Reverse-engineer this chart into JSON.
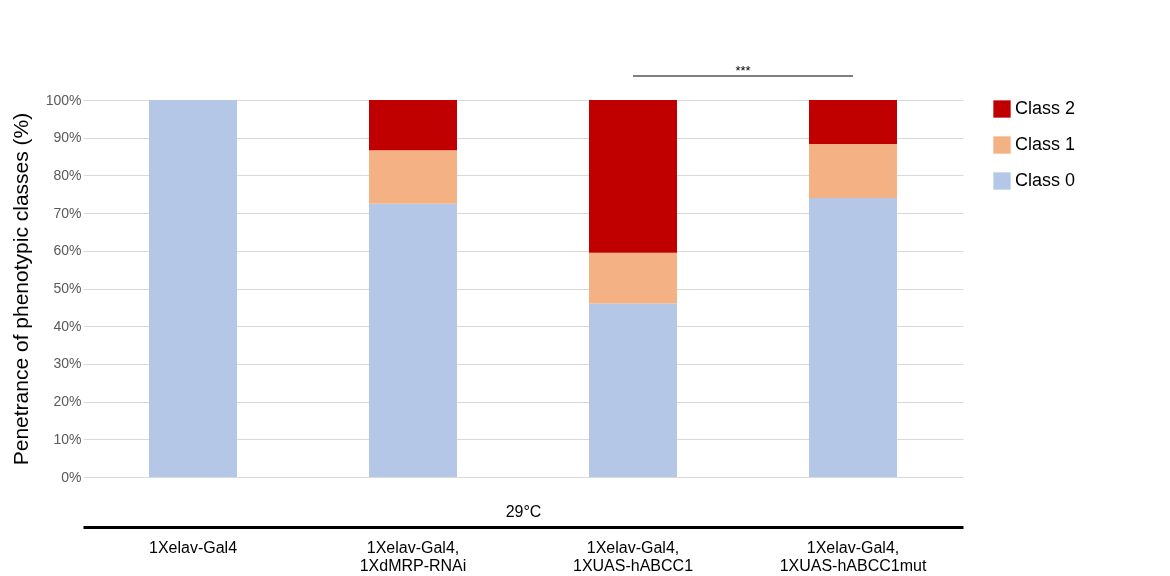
{
  "chart_data": {
    "type": "bar",
    "stacked": true,
    "ylabel": "Penetrance of phenotypic classes (%)",
    "xlabel": "29°C",
    "categories": [
      "1Xelav-Gal4",
      "1Xelav-Gal4,\n1XdMRP-RNAi",
      "1Xelav-Gal4,\n1XUAS-hABCC1",
      "1Xelav-Gal4,\n1XUAS-hABCC1mut"
    ],
    "series": [
      {
        "name": "Class 0",
        "color": "#b4c7e7",
        "values": [
          100,
          72.5,
          46,
          74
        ]
      },
      {
        "name": "Class 1",
        "color": "#f4b183",
        "values": [
          0,
          14.2,
          13.5,
          14.3
        ]
      },
      {
        "name": "Class 2",
        "color": "#c00000",
        "values": [
          0,
          13.3,
          40.5,
          11.7
        ]
      }
    ],
    "ylim": [
      0,
      100
    ],
    "yticks": [
      {
        "value": 0,
        "label": "0%"
      },
      {
        "value": 10,
        "label": "10%"
      },
      {
        "value": 20,
        "label": "20%"
      },
      {
        "value": 30,
        "label": "30%"
      },
      {
        "value": 40,
        "label": "40%"
      },
      {
        "value": 50,
        "label": "50%"
      },
      {
        "value": 60,
        "label": "60%"
      },
      {
        "value": 70,
        "label": "70%"
      },
      {
        "value": 80,
        "label": "80%"
      },
      {
        "value": 90,
        "label": "90%"
      },
      {
        "value": 100,
        "label": "100%"
      }
    ],
    "grid": "y",
    "legend": "right",
    "annotations": [
      "***"
    ]
  }
}
